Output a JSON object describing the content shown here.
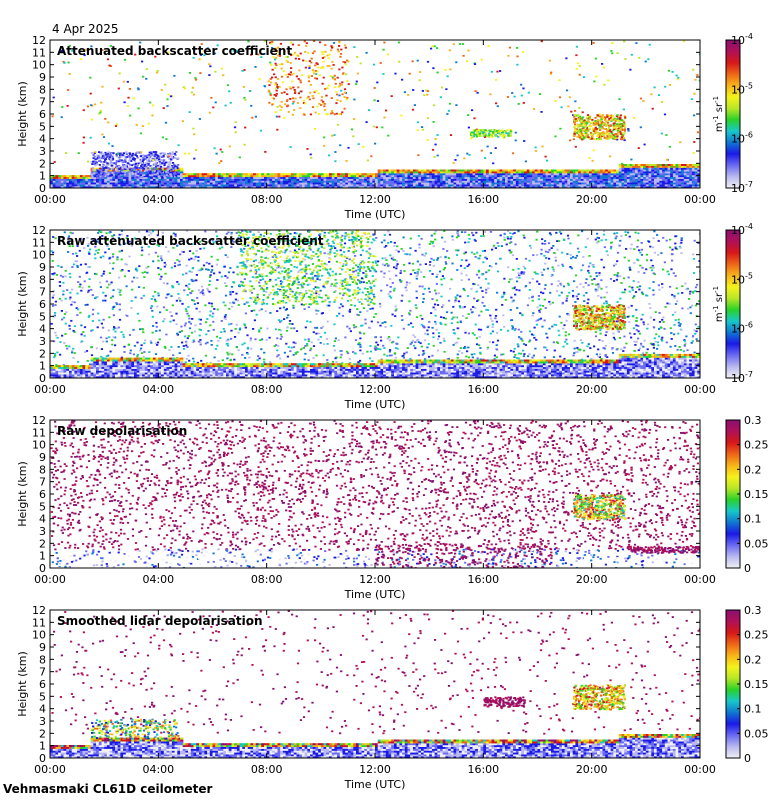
{
  "date_label": "4 Apr 2025",
  "footer_label": "Vehmasmaki CL61D ceilometer",
  "colors": {
    "bg": "#ffffff",
    "plot_bg": "#ffffff",
    "rainbow": [
      "#f0f0f4",
      "#b9b9f0",
      "#6a6af2",
      "#1a1ae6",
      "#0f78d2",
      "#18c8c8",
      "#2ad228",
      "#b8e628",
      "#f4f21c",
      "#f8b41a",
      "#ee6618",
      "#d61818",
      "#b01058",
      "#8a1070"
    ]
  },
  "chart_data": [
    {
      "type": "heatmap",
      "title": "Attenuated backscatter coefficient",
      "xlabel": "Time (UTC)",
      "ylabel": "Height (km)",
      "xlim": [
        0,
        24
      ],
      "ylim": [
        0,
        12
      ],
      "x_ticks": [
        0,
        4,
        8,
        12,
        16,
        20,
        24
      ],
      "x_tick_labels": [
        "00:00",
        "04:00",
        "08:00",
        "12:00",
        "16:00",
        "20:00",
        "00:00"
      ],
      "y_ticks": [
        0,
        1,
        2,
        3,
        4,
        5,
        6,
        7,
        8,
        9,
        10,
        11,
        12
      ],
      "y_tick_labels": [
        "0",
        "1",
        "2",
        "3",
        "4",
        "5",
        "6",
        "7",
        "8",
        "9",
        "10",
        "11",
        "12"
      ],
      "colorbar": {
        "scale": "log",
        "range": [
          1e-07,
          0.0001
        ],
        "ticks": [
          1e-07,
          1e-06,
          1e-05,
          0.0001
        ],
        "tick_labels": [
          {
            "base": "10",
            "exp": "-7"
          },
          {
            "base": "10",
            "exp": "-6"
          },
          {
            "base": "10",
            "exp": "-5"
          },
          {
            "base": "10",
            "exp": "-4"
          }
        ],
        "unit": {
          "m": "m",
          "m_exp": "-1",
          "sr": "sr",
          "sr_exp": "-1"
        }
      }
    },
    {
      "type": "heatmap",
      "title": "Raw attenuated backscatter coefficient",
      "xlabel": "Time (UTC)",
      "ylabel": "Height (km)",
      "xlim": [
        0,
        24
      ],
      "ylim": [
        0,
        12
      ],
      "x_ticks": [
        0,
        4,
        8,
        12,
        16,
        20,
        24
      ],
      "x_tick_labels": [
        "00:00",
        "04:00",
        "08:00",
        "12:00",
        "16:00",
        "20:00",
        "00:00"
      ],
      "y_ticks": [
        0,
        1,
        2,
        3,
        4,
        5,
        6,
        7,
        8,
        9,
        10,
        11,
        12
      ],
      "y_tick_labels": [
        "0",
        "1",
        "2",
        "3",
        "4",
        "5",
        "6",
        "7",
        "8",
        "9",
        "10",
        "11",
        "12"
      ],
      "colorbar": {
        "scale": "log",
        "range": [
          1e-07,
          0.0001
        ],
        "ticks": [
          1e-07,
          1e-06,
          1e-05,
          0.0001
        ],
        "tick_labels": [
          {
            "base": "10",
            "exp": "-7"
          },
          {
            "base": "10",
            "exp": "-6"
          },
          {
            "base": "10",
            "exp": "-5"
          },
          {
            "base": "10",
            "exp": "-4"
          }
        ],
        "unit": {
          "m": "m",
          "m_exp": "-1",
          "sr": "sr",
          "sr_exp": "-1"
        }
      }
    },
    {
      "type": "heatmap",
      "title": "Raw depolarisation",
      "xlabel": "Time (UTC)",
      "ylabel": "Height (km)",
      "xlim": [
        0,
        24
      ],
      "ylim": [
        0,
        12
      ],
      "x_ticks": [
        0,
        4,
        8,
        12,
        16,
        20,
        24
      ],
      "x_tick_labels": [
        "00:00",
        "04:00",
        "08:00",
        "12:00",
        "16:00",
        "20:00",
        "00:00"
      ],
      "y_ticks": [
        0,
        1,
        2,
        3,
        4,
        5,
        6,
        7,
        8,
        9,
        10,
        11,
        12
      ],
      "y_tick_labels": [
        "0",
        "1",
        "2",
        "3",
        "4",
        "5",
        "6",
        "7",
        "8",
        "9",
        "10",
        "11",
        "12"
      ],
      "colorbar": {
        "scale": "linear",
        "range": [
          0,
          0.3
        ],
        "ticks": [
          0,
          0.05,
          0.1,
          0.15,
          0.2,
          0.25,
          0.3
        ],
        "tick_labels": [
          "0",
          "0.05",
          "0.1",
          "0.15",
          "0.2",
          "0.25",
          "0.3"
        ]
      }
    },
    {
      "type": "heatmap",
      "title": "Smoothed lidar depolarisation",
      "xlabel": "Time (UTC)",
      "ylabel": "Height (km)",
      "xlim": [
        0,
        24
      ],
      "ylim": [
        0,
        12
      ],
      "x_ticks": [
        0,
        4,
        8,
        12,
        16,
        20,
        24
      ],
      "x_tick_labels": [
        "00:00",
        "04:00",
        "08:00",
        "12:00",
        "16:00",
        "20:00",
        "00:00"
      ],
      "y_ticks": [
        0,
        1,
        2,
        3,
        4,
        5,
        6,
        7,
        8,
        9,
        10,
        11,
        12
      ],
      "y_tick_labels": [
        "0",
        "1",
        "2",
        "3",
        "4",
        "5",
        "6",
        "7",
        "8",
        "9",
        "10",
        "11",
        "12"
      ],
      "colorbar": {
        "scale": "linear",
        "range": [
          0,
          0.3
        ],
        "ticks": [
          0,
          0.05,
          0.1,
          0.15,
          0.2,
          0.25,
          0.3
        ],
        "tick_labels": [
          "0",
          "0.05",
          "0.1",
          "0.15",
          "0.2",
          "0.25",
          "0.3"
        ]
      }
    }
  ]
}
